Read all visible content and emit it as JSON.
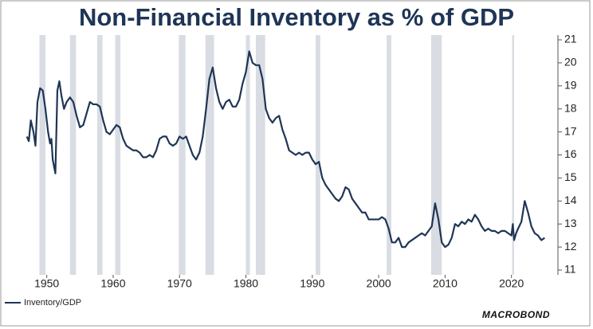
{
  "chart_data": {
    "type": "line",
    "title": "Non-Financial Inventory as % of GDP",
    "xlim": [
      1945,
      2027
    ],
    "xticks": [
      1950,
      1960,
      1970,
      1980,
      1990,
      2000,
      2010,
      2020
    ],
    "ylim": [
      11,
      21
    ],
    "yticks": [
      11,
      12,
      13,
      14,
      15,
      16,
      17,
      18,
      19,
      20,
      21
    ],
    "recessions": [
      [
        1948.9,
        1949.8
      ],
      [
        1953.5,
        1954.4
      ],
      [
        1957.6,
        1958.4
      ],
      [
        1960.3,
        1961.1
      ],
      [
        1969.9,
        1970.9
      ],
      [
        1973.9,
        1975.2
      ],
      [
        1980.0,
        1980.6
      ],
      [
        1981.5,
        1982.9
      ],
      [
        1990.5,
        1991.2
      ],
      [
        2001.2,
        2001.9
      ],
      [
        2007.9,
        2009.5
      ],
      [
        2020.1,
        2020.4
      ]
    ],
    "recession_color": "#d9dce3",
    "x": [
      1947.0,
      1947.3,
      1947.6,
      1948.0,
      1948.3,
      1948.6,
      1949.0,
      1949.4,
      1949.8,
      1950.2,
      1950.5,
      1950.7,
      1950.9,
      1951.3,
      1951.6,
      1951.9,
      1952.2,
      1952.6,
      1953.0,
      1953.5,
      1954.0,
      1954.5,
      1955.0,
      1955.5,
      1956.0,
      1956.5,
      1957.0,
      1957.5,
      1958.0,
      1958.5,
      1959.0,
      1959.5,
      1960.0,
      1960.5,
      1961.0,
      1961.5,
      1962.0,
      1962.5,
      1963.0,
      1963.5,
      1964.0,
      1964.5,
      1965.0,
      1965.5,
      1966.0,
      1966.5,
      1967.0,
      1967.5,
      1968.0,
      1968.5,
      1969.0,
      1969.5,
      1970.0,
      1970.5,
      1971.0,
      1971.5,
      1972.0,
      1972.5,
      1973.0,
      1973.5,
      1974.0,
      1974.5,
      1975.0,
      1975.5,
      1976.0,
      1976.5,
      1977.0,
      1977.5,
      1978.0,
      1978.5,
      1979.0,
      1979.5,
      1980.0,
      1980.5,
      1981.0,
      1981.5,
      1982.0,
      1982.5,
      1983.0,
      1983.5,
      1984.0,
      1984.5,
      1985.0,
      1985.5,
      1986.0,
      1986.5,
      1987.0,
      1987.5,
      1988.0,
      1988.5,
      1989.0,
      1989.5,
      1990.0,
      1990.5,
      1991.0,
      1991.5,
      1992.0,
      1992.5,
      1993.0,
      1993.5,
      1994.0,
      1994.5,
      1995.0,
      1995.5,
      1996.0,
      1996.5,
      1997.0,
      1997.5,
      1998.0,
      1998.5,
      1999.0,
      1999.5,
      2000.0,
      2000.5,
      2001.0,
      2001.5,
      2002.0,
      2002.5,
      2003.0,
      2003.5,
      2004.0,
      2004.5,
      2005.0,
      2005.5,
      2006.0,
      2006.5,
      2007.0,
      2007.5,
      2008.0,
      2008.5,
      2009.0,
      2009.5,
      2010.0,
      2010.5,
      2011.0,
      2011.5,
      2012.0,
      2012.5,
      2013.0,
      2013.5,
      2014.0,
      2014.5,
      2015.0,
      2015.5,
      2016.0,
      2016.5,
      2017.0,
      2017.5,
      2018.0,
      2018.5,
      2019.0,
      2019.5,
      2020.0,
      2020.2,
      2020.4,
      2020.7,
      2021.0,
      2021.5,
      2022.0,
      2022.5,
      2023.0,
      2023.5,
      2024.0,
      2024.5,
      2025.0
    ],
    "series": [
      {
        "name": "Inventory/GDP",
        "color": "#1f3556",
        "values": [
          16.8,
          16.6,
          17.5,
          17.0,
          16.4,
          18.3,
          18.9,
          18.8,
          18.0,
          17.0,
          16.5,
          16.7,
          15.8,
          15.2,
          18.8,
          19.2,
          18.6,
          18.0,
          18.3,
          18.5,
          18.3,
          17.7,
          17.2,
          17.3,
          17.8,
          18.3,
          18.2,
          18.2,
          18.1,
          17.5,
          17.0,
          16.9,
          17.1,
          17.3,
          17.2,
          16.7,
          16.4,
          16.3,
          16.2,
          16.2,
          16.1,
          15.9,
          15.9,
          16.0,
          15.9,
          16.2,
          16.7,
          16.8,
          16.8,
          16.5,
          16.4,
          16.5,
          16.8,
          16.7,
          16.8,
          16.4,
          16.0,
          15.8,
          16.1,
          16.8,
          18.0,
          19.3,
          19.8,
          18.9,
          18.3,
          18.0,
          18.3,
          18.4,
          18.1,
          18.1,
          18.4,
          19.1,
          19.6,
          20.5,
          20.0,
          19.9,
          19.9,
          19.3,
          18.0,
          17.6,
          17.4,
          17.6,
          17.7,
          17.1,
          16.7,
          16.2,
          16.1,
          16.0,
          16.1,
          16.0,
          16.1,
          16.1,
          15.8,
          15.6,
          15.7,
          15.0,
          14.7,
          14.5,
          14.3,
          14.1,
          14.0,
          14.2,
          14.6,
          14.5,
          14.1,
          13.9,
          13.7,
          13.5,
          13.5,
          13.2,
          13.2,
          13.2,
          13.2,
          13.3,
          13.2,
          12.8,
          12.2,
          12.2,
          12.4,
          12.0,
          12.0,
          12.2,
          12.3,
          12.4,
          12.5,
          12.6,
          12.5,
          12.7,
          12.9,
          13.9,
          13.2,
          12.2,
          12.0,
          12.1,
          12.4,
          13.0,
          12.9,
          13.1,
          13.0,
          13.2,
          13.1,
          13.4,
          13.2,
          12.9,
          12.7,
          12.8,
          12.7,
          12.7,
          12.6,
          12.7,
          12.7,
          12.6,
          12.5,
          13.0,
          12.3,
          12.6,
          12.8,
          13.1,
          14.0,
          13.5,
          12.9,
          12.6,
          12.5,
          12.3,
          12.4
        ]
      }
    ],
    "source": "MACROBOND"
  }
}
